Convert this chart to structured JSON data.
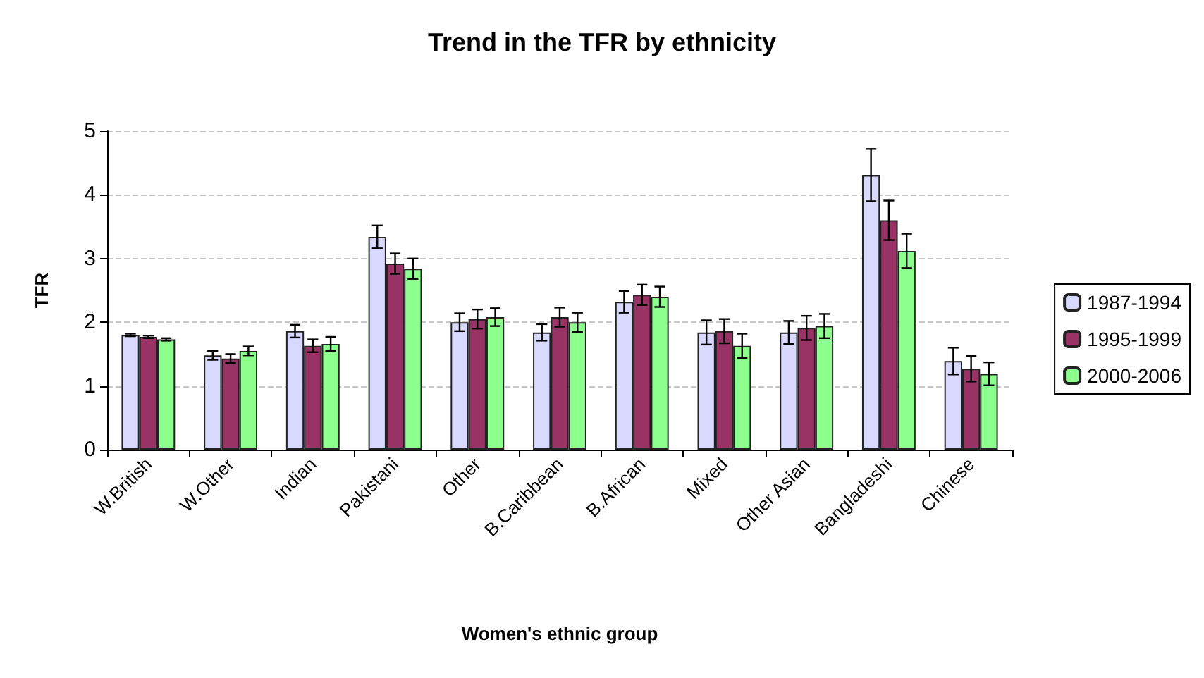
{
  "chart_data": {
    "type": "bar",
    "title": "Trend in the TFR by ethnicity",
    "xlabel": "Women's ethnic group",
    "ylabel": "TFR",
    "categories": [
      "W.British",
      "W.Other",
      "Indian",
      "Pakistani",
      "Other",
      "B.Caribbean",
      "B.African",
      "Mixed",
      "Other Asian",
      "Bangladeshi",
      "Chinese"
    ],
    "series": [
      {
        "name": "1987-1994",
        "color": "#d9d9ff",
        "values": [
          1.8,
          1.48,
          1.86,
          3.34,
          2.0,
          1.84,
          2.32,
          1.84,
          1.84,
          4.31,
          1.39
        ],
        "errors": [
          0.02,
          0.07,
          0.1,
          0.18,
          0.14,
          0.13,
          0.17,
          0.19,
          0.18,
          0.41,
          0.21
        ]
      },
      {
        "name": "1995-1999",
        "color": "#993366",
        "values": [
          1.77,
          1.43,
          1.63,
          2.92,
          2.05,
          2.08,
          2.43,
          1.86,
          1.91,
          3.6,
          1.27
        ],
        "errors": [
          0.02,
          0.07,
          0.1,
          0.16,
          0.15,
          0.15,
          0.16,
          0.19,
          0.19,
          0.31,
          0.2
        ]
      },
      {
        "name": "2000-2006",
        "color": "#8cff8c",
        "values": [
          1.73,
          1.55,
          1.66,
          2.84,
          2.08,
          2.0,
          2.4,
          1.63,
          1.94,
          3.12,
          1.19
        ],
        "errors": [
          0.02,
          0.07,
          0.11,
          0.16,
          0.14,
          0.15,
          0.16,
          0.19,
          0.19,
          0.27,
          0.18
        ]
      }
    ],
    "ylim": [
      0,
      5
    ],
    "yticks": [
      0,
      1,
      2,
      3,
      4,
      5
    ],
    "grid": "y",
    "legend": "right"
  }
}
